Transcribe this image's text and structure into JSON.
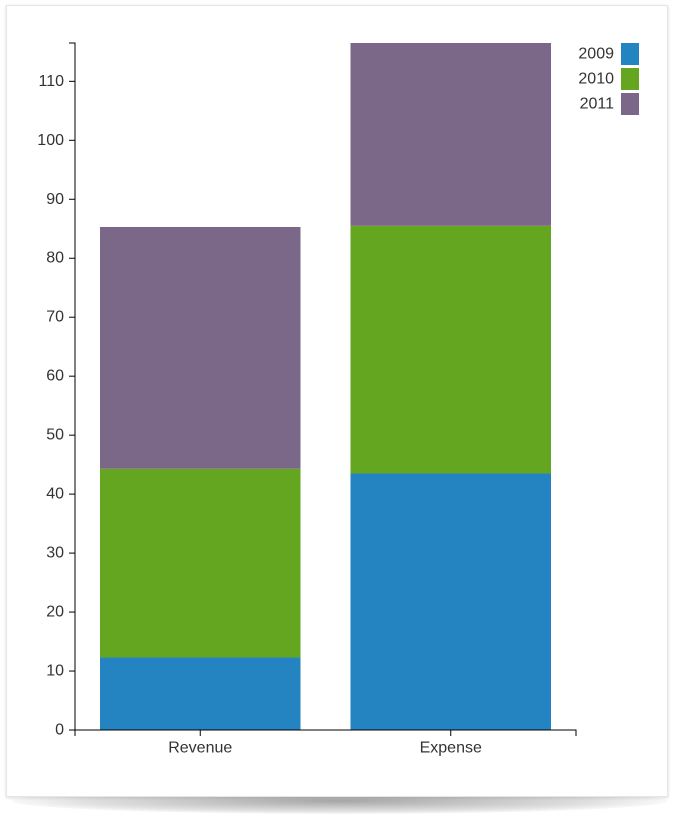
{
  "chart_data": {
    "type": "bar",
    "stacked": true,
    "categories": [
      "Revenue",
      "Expense"
    ],
    "series": [
      {
        "name": "2009",
        "color": "#2484c1",
        "values": [
          12.3,
          43.5
        ]
      },
      {
        "name": "2010",
        "color": "#65a620",
        "values": [
          32.0,
          42.0
        ]
      },
      {
        "name": "2011",
        "color": "#7b6888",
        "values": [
          41.0,
          31.0
        ]
      }
    ],
    "ylim": [
      0,
      116.5
    ],
    "yticks": [
      0,
      10,
      20,
      30,
      40,
      50,
      60,
      70,
      80,
      90,
      100,
      110
    ],
    "legend_position": "top-right",
    "grid": false
  }
}
